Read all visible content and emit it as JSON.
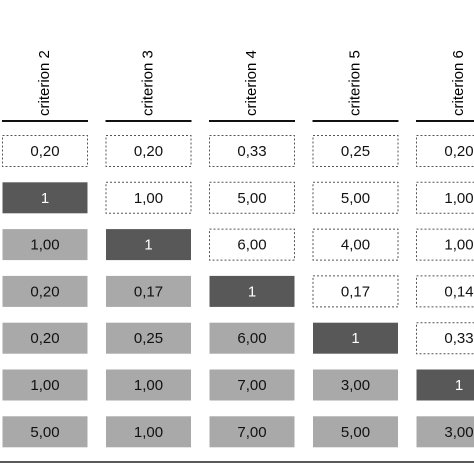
{
  "table": {
    "columns": [
      "criterion 2",
      "criterion 3",
      "criterion 4",
      "criterion 5",
      "criterion 6"
    ],
    "rows": [
      [
        "0,20",
        "0,20",
        "0,33",
        "0,25",
        "0,20"
      ],
      [
        "1",
        "1,00",
        "5,00",
        "5,00",
        "1,00"
      ],
      [
        "1,00",
        "1",
        "6,00",
        "4,00",
        "1,00"
      ],
      [
        "0,20",
        "0,17",
        "1",
        "0,17",
        "0,14"
      ],
      [
        "0,20",
        "0,25",
        "6,00",
        "1",
        "0,33"
      ],
      [
        "1,00",
        "1,00",
        "7,00",
        "3,00",
        "1"
      ],
      [
        "5,00",
        "1,00",
        "7,00",
        "5,00",
        "3,00"
      ]
    ],
    "cell_styles": [
      [
        "dotted",
        "dotted",
        "dotted",
        "dotted",
        "dotted"
      ],
      [
        "dark",
        "dotted",
        "dotted",
        "dotted",
        "dotted"
      ],
      [
        "gray",
        "dark",
        "dotted",
        "dotted",
        "dotted"
      ],
      [
        "gray",
        "gray",
        "dark",
        "dotted",
        "dotted"
      ],
      [
        "gray",
        "gray",
        "gray",
        "dark",
        "dotted"
      ],
      [
        "gray",
        "gray",
        "gray",
        "gray",
        "dark"
      ],
      [
        "gray",
        "gray",
        "gray",
        "gray",
        "gray"
      ]
    ]
  }
}
